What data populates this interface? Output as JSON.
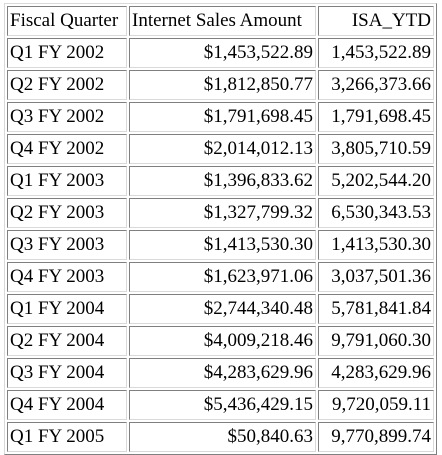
{
  "table": {
    "headers": [
      "Fiscal Quarter",
      "Internet Sales Amount",
      "ISA_YTD"
    ],
    "rows": [
      [
        "Q1 FY 2002",
        "$1,453,522.89",
        "1,453,522.89"
      ],
      [
        "Q2 FY 2002",
        "$1,812,850.77",
        "3,266,373.66"
      ],
      [
        "Q3 FY 2002",
        "$1,791,698.45",
        "1,791,698.45"
      ],
      [
        "Q4 FY 2002",
        "$2,014,012.13",
        "3,805,710.59"
      ],
      [
        "Q1 FY 2003",
        "$1,396,833.62",
        "5,202,544.20"
      ],
      [
        "Q2 FY 2003",
        "$1,327,799.32",
        "6,530,343.53"
      ],
      [
        "Q3 FY 2003",
        "$1,413,530.30",
        "1,413,530.30"
      ],
      [
        "Q4 FY 2003",
        "$1,623,971.06",
        "3,037,501.36"
      ],
      [
        "Q1 FY 2004",
        "$2,744,340.48",
        "5,781,841.84"
      ],
      [
        "Q2 FY 2004",
        "$4,009,218.46",
        "9,791,060.30"
      ],
      [
        "Q3 FY 2004",
        "$4,283,629.96",
        "4,283,629.96"
      ],
      [
        "Q4 FY 2004",
        "$5,436,429.15",
        "9,720,059.11"
      ],
      [
        "Q1 FY 2005",
        "$50,840.63",
        "9,770,899.74"
      ]
    ]
  }
}
